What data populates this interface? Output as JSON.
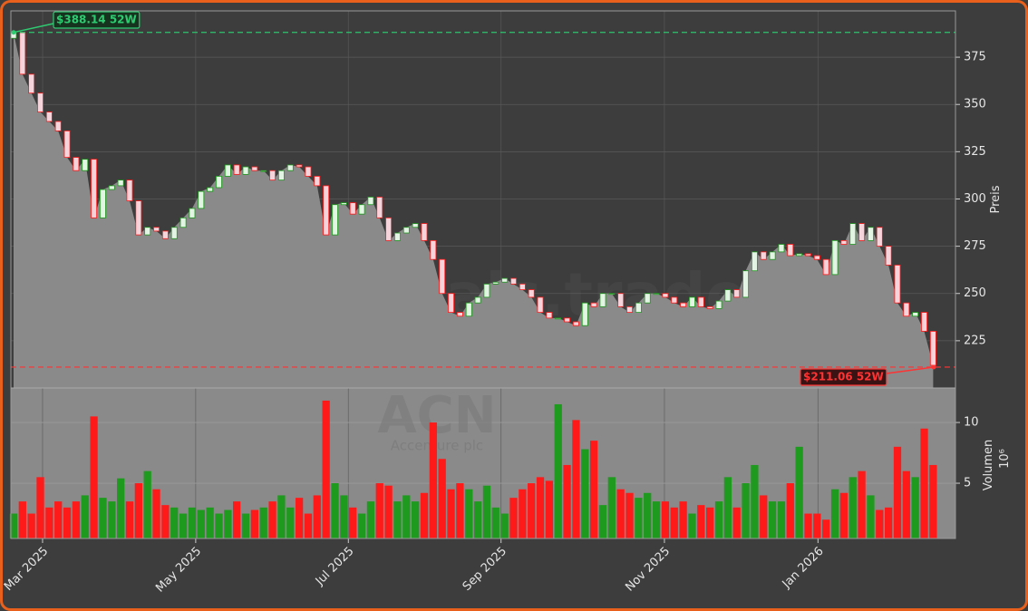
{
  "chart_data": {
    "type": "candlestick",
    "y_label": "Preis",
    "ylim": [
      200,
      399.5
    ],
    "yticks": [
      225,
      250,
      275,
      300,
      325,
      350,
      375
    ],
    "xlim": [
      -0.3,
      105.5
    ],
    "xticks": [
      {
        "value": 3.25,
        "label": "Mar 2025"
      },
      {
        "value": 20.4,
        "label": "May 2025"
      },
      {
        "value": 37.5,
        "label": "Jul 2025"
      },
      {
        "value": 54.6,
        "label": "Sep 2025"
      },
      {
        "value": 72.9,
        "label": "Nov 2025"
      },
      {
        "value": 90.1,
        "label": "Jan 2026"
      }
    ],
    "open": [
      385,
      388,
      366,
      356,
      346,
      341,
      336,
      322,
      315,
      321,
      290,
      305,
      307,
      310,
      299,
      281,
      285,
      283,
      279,
      285,
      290,
      295,
      304,
      306,
      312,
      318,
      313,
      317,
      315,
      315,
      310,
      315,
      318,
      317,
      312,
      307,
      281,
      297,
      298,
      292,
      297,
      301,
      290,
      278,
      282,
      285,
      287,
      278,
      268,
      250,
      240,
      238,
      245,
      248,
      255,
      256,
      258,
      255,
      252,
      248,
      240,
      237,
      237,
      235,
      233,
      245,
      243,
      250,
      250,
      243,
      240,
      245,
      250,
      250,
      248,
      245,
      243,
      248,
      243,
      242,
      246,
      252,
      248,
      262,
      272,
      268,
      272,
      276,
      270,
      271,
      270,
      268,
      260,
      278,
      276,
      287,
      278,
      285,
      275,
      265,
      245,
      238,
      240,
      230
    ],
    "close": [
      388,
      366,
      356,
      346,
      341,
      336,
      322,
      315,
      321,
      290,
      305,
      307,
      310,
      299,
      281,
      285,
      283,
      279,
      285,
      290,
      295,
      304,
      306,
      312,
      318,
      313,
      317,
      315,
      315,
      310,
      315,
      318,
      317,
      312,
      307,
      281,
      297,
      298,
      292,
      297,
      301,
      290,
      278,
      282,
      285,
      287,
      278,
      268,
      250,
      240,
      238,
      245,
      248,
      255,
      256,
      258,
      255,
      252,
      248,
      240,
      237,
      237,
      235,
      233,
      245,
      243,
      250,
      250,
      243,
      240,
      245,
      250,
      250,
      248,
      245,
      243,
      248,
      243,
      242,
      246,
      252,
      248,
      262,
      272,
      268,
      272,
      276,
      270,
      271,
      270,
      268,
      260,
      278,
      276,
      287,
      278,
      285,
      275,
      265,
      245,
      238,
      240,
      230,
      212
    ],
    "volume": [
      2.5,
      3.5,
      2.5,
      5.5,
      3,
      3.5,
      3,
      3.5,
      4,
      10.5,
      3.8,
      3.5,
      5.4,
      3.5,
      5,
      6,
      4.5,
      3.2,
      3,
      2.5,
      3,
      2.8,
      3,
      2.5,
      2.8,
      3.5,
      2.5,
      2.8,
      3,
      3.5,
      4,
      3,
      3.8,
      2.5,
      4,
      11.8,
      5,
      4,
      3,
      2.5,
      3.5,
      5,
      4.8,
      3.5,
      4,
      3.5,
      4.2,
      10,
      7,
      4.5,
      5,
      4.5,
      3.5,
      4.8,
      3,
      2.5,
      3.8,
      4.5,
      5,
      5.5,
      5.2,
      11.5,
      6.5,
      10.2,
      7.8,
      8.5,
      3.2,
      5.5,
      4.5,
      4.2,
      3.8,
      4.2,
      3.5,
      3.5,
      3,
      3.5,
      2.5,
      3.2,
      3,
      3.5,
      5.5,
      3,
      5,
      6.5,
      4,
      3.5,
      3.5,
      5,
      8,
      2.5,
      2.5,
      2,
      4.5,
      4.2,
      5.5,
      6,
      4,
      2.8,
      3,
      8,
      6,
      5.5,
      9.5,
      6.5
    ],
    "volume_label": "Volumen",
    "volume_exponent": "10⁶",
    "volume_ylim": [
      0.45,
      12.84
    ],
    "volume_yticks": [
      5,
      10
    ],
    "up_color": "#1e9a1e",
    "down_color": "#ff1a1a",
    "area_color": "#8a8a8a",
    "grid": true,
    "high_line": {
      "value": 388.14,
      "label": "$388.14 52W",
      "color": "#2ecc71"
    },
    "low_line": {
      "value": 211.06,
      "label": "$211.06 52W",
      "color": "#ff3333"
    },
    "watermark": "forexsignals.trade",
    "symbol": "ACN",
    "company": "Accenture plc"
  }
}
